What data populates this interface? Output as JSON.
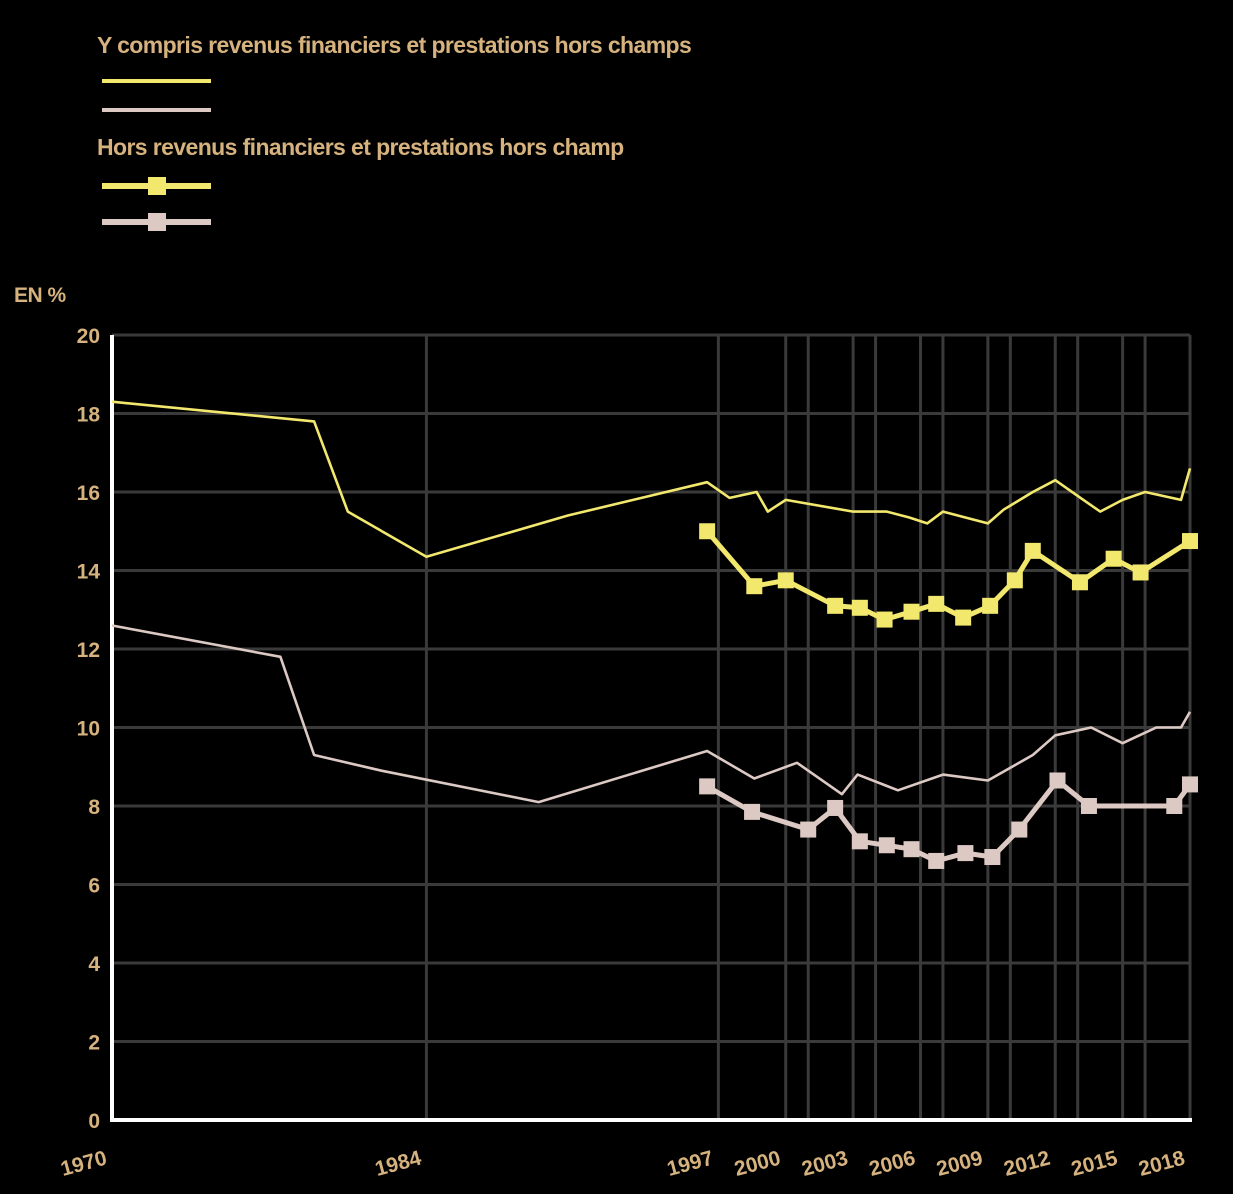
{
  "legend": {
    "group1_title": "Y compris revenus financiers et prestations hors champs",
    "group2_title": "Hors revenus financiers et prestations hors champ"
  },
  "colors": {
    "yellow": "#f2e86d",
    "pink": "#dcc9c3",
    "label": "#d6b27e",
    "grid": "#3a3a3a",
    "axis": "#ffffff",
    "background": "#000000"
  },
  "chart_data": {
    "type": "line",
    "ylabel": "EN %",
    "ylim": [
      0,
      20
    ],
    "xlim": [
      1970,
      2018
    ],
    "yticks": [
      0,
      2,
      4,
      6,
      8,
      10,
      12,
      14,
      16,
      18,
      20
    ],
    "xticks": [
      1970,
      1984,
      1997,
      2000,
      2003,
      2006,
      2009,
      2012,
      2015,
      2018
    ],
    "xtick_labels": [
      "1970",
      "1984",
      "1997",
      "2000",
      "2003",
      "2006",
      "2009",
      "2012",
      "2015",
      "2018"
    ],
    "extra_vgrid": [
      2001,
      2004,
      2007,
      2010,
      2013,
      2016
    ],
    "grid": true,
    "series": [
      {
        "group": 1,
        "color_key": "yellow",
        "markers": false,
        "x": [
          1970,
          1979,
          1980.5,
          1984,
          1990.3,
          1996.5,
          1997.5,
          1998.7,
          1999.2,
          2000,
          2003,
          2004.5,
          2005.5,
          2006.3,
          2007,
          2008,
          2009,
          2009.7,
          2011,
          2012,
          2013,
          2014,
          2015,
          2016,
          2017.6,
          2018
        ],
        "y": [
          18.3,
          17.8,
          15.5,
          14.35,
          15.4,
          16.25,
          15.85,
          16.0,
          15.5,
          15.8,
          15.5,
          15.5,
          15.35,
          15.2,
          15.5,
          15.35,
          15.2,
          15.55,
          16.0,
          16.3,
          15.9,
          15.5,
          15.8,
          16.0,
          15.8,
          16.6
        ]
      },
      {
        "group": 1,
        "color_key": "pink",
        "markers": false,
        "x": [
          1970,
          1977.5,
          1979,
          1982,
          1989,
          1996.5,
          1998.6,
          2000.5,
          2002.5,
          2003.2,
          2005,
          2007,
          2009,
          2011,
          2012,
          2013.6,
          2015,
          2016.5,
          2017.6,
          2018
        ],
        "y": [
          12.6,
          11.8,
          9.3,
          8.9,
          8.1,
          9.4,
          8.7,
          9.1,
          8.3,
          8.8,
          8.4,
          8.8,
          8.65,
          9.3,
          9.8,
          10.0,
          9.6,
          10.0,
          10.0,
          10.4
        ]
      },
      {
        "group": 2,
        "color_key": "yellow",
        "markers": true,
        "x": [
          1996.5,
          1998.6,
          2000,
          2002.2,
          2003.3,
          2004.4,
          2005.6,
          2006.7,
          2007.9,
          2009.1,
          2010.2,
          2011,
          2013.1,
          2014.6,
          2015.8,
          2018
        ],
        "y": [
          15.0,
          13.6,
          13.75,
          13.1,
          13.05,
          12.75,
          12.95,
          13.15,
          12.8,
          13.1,
          13.75,
          14.5,
          13.7,
          14.3,
          13.95,
          14.75
        ]
      },
      {
        "group": 2,
        "color_key": "pink",
        "markers": true,
        "x": [
          1996.5,
          1998.5,
          2001,
          2002.2,
          2003.3,
          2004.5,
          2005.6,
          2006.7,
          2008,
          2009.2,
          2010.4,
          2012.1,
          2013.5,
          2017.3,
          2018
        ],
        "y": [
          8.5,
          7.85,
          7.4,
          7.95,
          7.1,
          7.0,
          6.9,
          6.6,
          6.8,
          6.7,
          7.4,
          8.65,
          8.0,
          8.0,
          8.55
        ]
      }
    ]
  }
}
